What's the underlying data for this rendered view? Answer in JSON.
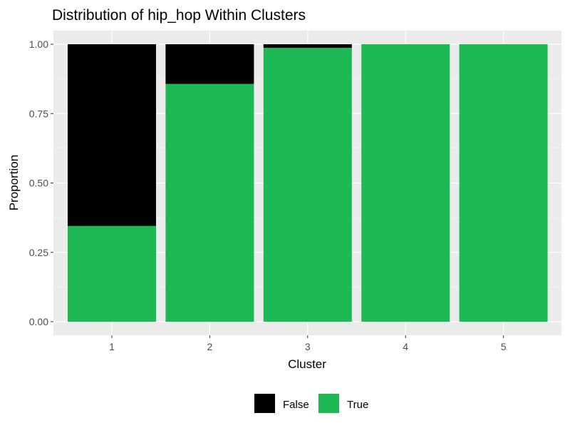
{
  "chart_data": {
    "type": "bar",
    "stacked": true,
    "title": "Distribution of hip_hop Within Clusters",
    "xlabel": "Cluster",
    "ylabel": "Proportion",
    "categories": [
      "1",
      "2",
      "3",
      "4",
      "5"
    ],
    "ylim": [
      0,
      1
    ],
    "yticks": [
      0,
      0.25,
      0.5,
      0.75,
      1
    ],
    "ytick_labels": [
      "0.00",
      "0.25",
      "0.50",
      "0.75",
      "1.00"
    ],
    "series": [
      {
        "name": "True",
        "values": [
          0.345,
          0.857,
          0.987,
          1.0,
          1.0
        ],
        "color": "#1db954"
      },
      {
        "name": "False",
        "values": [
          0.655,
          0.143,
          0.013,
          0.0,
          0.0
        ],
        "color": "#000000"
      }
    ],
    "legend": {
      "position": "bottom",
      "entries": [
        {
          "label": "False",
          "color": "#000000"
        },
        {
          "label": "True",
          "color": "#1db954"
        }
      ]
    },
    "grid": true,
    "panel_background": "#ebebeb",
    "grid_color": "#ffffff"
  }
}
